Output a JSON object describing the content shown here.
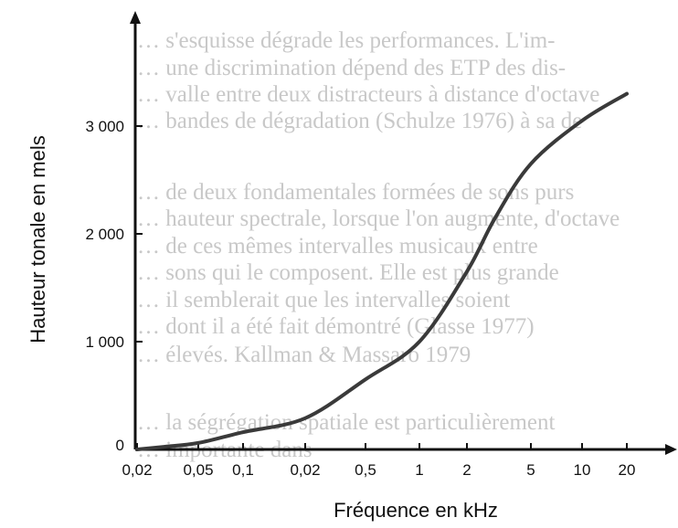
{
  "chart_data": {
    "type": "line",
    "title": "",
    "xlabel": "Fréquence en kHz",
    "ylabel": "Hauteur tonale en mels",
    "x_scale": "log",
    "x_ticks": [
      "0,02",
      "0,05",
      "0,1",
      "0,02",
      "0,5",
      "1",
      "2",
      "5",
      "10",
      "20"
    ],
    "y_ticks": [
      "0",
      "1 000",
      "2 000",
      "3 000"
    ],
    "ylim": [
      0,
      3400
    ],
    "grid": false,
    "series": [
      {
        "color": "#3a3a3a",
        "points": [
          {
            "x": 0.02,
            "y": 0
          },
          {
            "x": 0.03,
            "y": 25
          },
          {
            "x": 0.05,
            "y": 60
          },
          {
            "x": 0.1,
            "y": 160
          },
          {
            "x": 0.2,
            "y": 290
          },
          {
            "x": 0.5,
            "y": 650
          },
          {
            "x": 1,
            "y": 1000
          },
          {
            "x": 2,
            "y": 1650
          },
          {
            "x": 3,
            "y": 2150
          },
          {
            "x": 5,
            "y": 2650
          },
          {
            "x": 10,
            "y": 3050
          },
          {
            "x": 20,
            "y": 3300
          }
        ]
      }
    ]
  },
  "background_text": [
    "… s'esquisse dégrade les performances. L'im-",
    "… une discrimination dépend des ETP des dis-",
    "… valle entre deux distracteurs à distance d'octave",
    "… bandes de dégradation (Schulze 1976) à sa de",
    "… de deux fondamentales formées de sons purs",
    "… hauteur spectrale, lorsque l'on augmente, d'octave",
    "… de ces mêmes intervalles musicaux entre",
    "… sons qui le composent. Elle est plus grande",
    "… il semblerait que les intervalles soient",
    "… dont il a été fait démontré (Glasse 1977)",
    "… élevés. Kallman & Massaro 1979",
    "… la ségrégation spatiale est particulièrement",
    "… importante dans"
  ]
}
